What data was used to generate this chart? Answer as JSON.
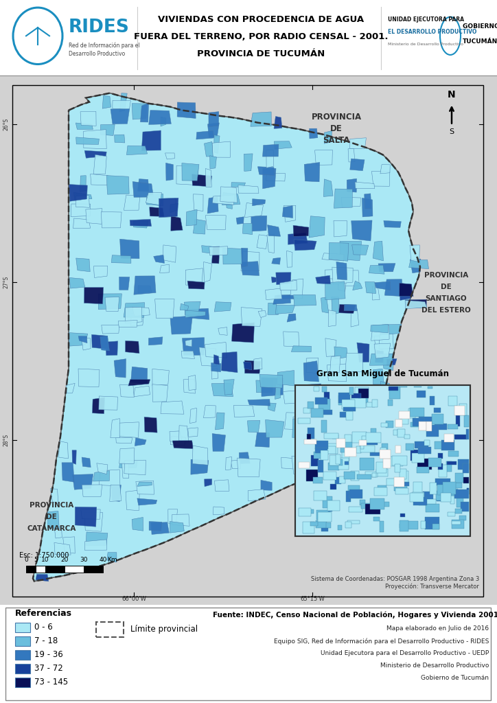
{
  "title_line1": "VIVIENDAS CON PROCEDENCIA DE AGUA",
  "title_line2": "FUERA DEL TERRENO, POR RADIO CENSAL - 2001.",
  "title_line3": "PROVINCIA DE TUCUMÁN",
  "rides_text": "RIDES",
  "rides_subtitle": "Red de Información para el\nDesarrollo Productivo",
  "referencias_title": "Referencias",
  "legend_items": [
    {
      "label": "0 - 6",
      "color": "#aae8f5"
    },
    {
      "label": "7 - 18",
      "color": "#6bbedd"
    },
    {
      "label": "19 - 36",
      "color": "#3378be"
    },
    {
      "label": "37 - 72",
      "color": "#17409a"
    },
    {
      "label": "73 - 145",
      "color": "#091058"
    }
  ],
  "limite_label": "Límite provincial",
  "source_bold": "Fuente: INDEC, Censo Nacional de Población, Hogares y Vivienda 2001.",
  "source_lines": [
    "Mapa elaborado en Julio de 2016",
    "Equipo SIG, Red de Información para el Desarrollo Productivo - RIDES",
    "Unidad Ejecutora para el Desarrollo Productivo - UEDP",
    "Ministerio de Desarrollo Productivo",
    "Gobierno de Tucumán"
  ],
  "coord_text": "Sistema de Coordenadas: POSGAR 1998 Argentina Zona 3\nProyección: Transverse Mercator",
  "scale_text": "Esc: 1:750.000",
  "inset_label": "Gran San Miguel de Tucumán",
  "map_bg_color": "#d0d0d0",
  "province_base": "#aae8f5",
  "map_fill_colors": [
    "#aae8f5",
    "#6bbedd",
    "#3378be",
    "#17409a",
    "#091058"
  ]
}
